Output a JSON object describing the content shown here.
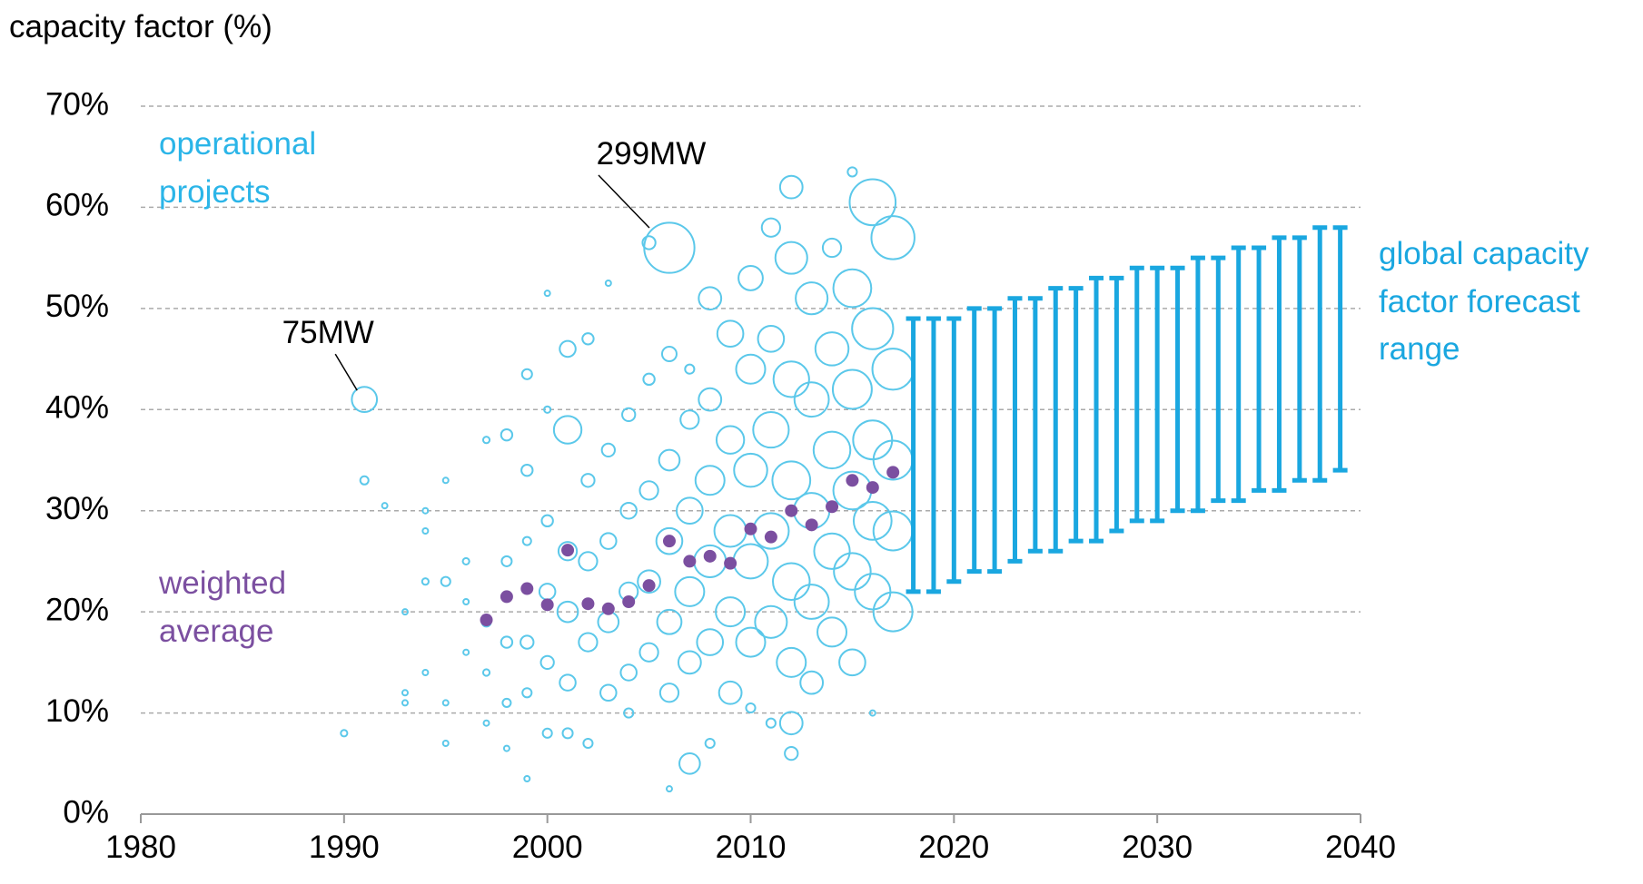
{
  "chart_data": {
    "type": "bubble",
    "y_label": "capacity factor (%)",
    "xlim": [
      1980,
      2040
    ],
    "xticks": [
      1980,
      1990,
      2000,
      2010,
      2020,
      2030,
      2040
    ],
    "ylim": [
      0,
      70
    ],
    "yticks": [
      {
        "value": 0,
        "label": "0%"
      },
      {
        "value": 10,
        "label": "10%"
      },
      {
        "value": 20,
        "label": "20%"
      },
      {
        "value": 30,
        "label": "30%"
      },
      {
        "value": 40,
        "label": "40%"
      },
      {
        "value": 50,
        "label": "50%"
      },
      {
        "value": 60,
        "label": "60%"
      },
      {
        "value": 70,
        "label": "70%"
      }
    ],
    "grid": true,
    "series": [
      {
        "name": "operational projects",
        "color": "#5bc8ea",
        "x": [
          1990,
          1991,
          1991,
          1992,
          1993,
          1993,
          1993,
          1994,
          1994,
          1994,
          1994,
          1995,
          1995,
          1995,
          1995,
          1996,
          1996,
          1996,
          1997,
          1997,
          1997,
          1997,
          1998,
          1998,
          1998,
          1998,
          1998,
          1999,
          1999,
          1999,
          1999,
          1999,
          1999,
          2000,
          2000,
          2000,
          2000,
          2000,
          2000,
          2001,
          2001,
          2001,
          2001,
          2001,
          2001,
          2002,
          2002,
          2002,
          2002,
          2002,
          2003,
          2003,
          2003,
          2003,
          2003,
          2004,
          2004,
          2004,
          2004,
          2004,
          2005,
          2005,
          2005,
          2005,
          2005,
          2006,
          2006,
          2006,
          2006,
          2006,
          2006,
          2006,
          2007,
          2007,
          2007,
          2007,
          2007,
          2007,
          2008,
          2008,
          2008,
          2008,
          2008,
          2008,
          2009,
          2009,
          2009,
          2009,
          2009,
          2010,
          2010,
          2010,
          2010,
          2010,
          2010,
          2011,
          2011,
          2011,
          2011,
          2011,
          2011,
          2012,
          2012,
          2012,
          2012,
          2012,
          2012,
          2012,
          2012,
          2013,
          2013,
          2013,
          2013,
          2013,
          2014,
          2014,
          2014,
          2014,
          2014,
          2015,
          2015,
          2015,
          2015,
          2015,
          2015,
          2016,
          2016,
          2016,
          2016,
          2016,
          2016,
          2017,
          2017,
          2017,
          2017,
          2017
        ],
        "values": [
          8,
          41,
          33,
          30.5,
          12,
          11,
          20,
          30,
          28,
          23,
          14,
          33,
          23,
          7,
          11,
          25,
          16,
          21,
          37,
          19,
          14,
          9,
          37.5,
          25,
          17,
          11,
          6.5,
          43.5,
          34,
          27,
          17,
          12,
          3.5,
          51.5,
          40,
          29,
          22,
          15,
          8,
          46,
          38,
          26,
          20,
          13,
          8,
          47,
          33,
          25,
          17,
          7,
          52.5,
          36,
          27,
          19,
          12,
          39.5,
          30,
          22,
          14,
          10,
          56.5,
          43,
          32,
          23,
          16,
          56,
          45.5,
          35,
          27,
          19,
          12,
          2.5,
          44,
          39,
          30,
          22,
          15,
          5,
          51,
          41,
          33,
          25,
          17,
          7,
          47.5,
          37,
          28,
          20,
          12,
          53,
          44,
          34,
          25,
          17,
          10.5,
          58,
          47,
          38,
          28,
          19,
          9,
          62,
          55,
          43,
          33,
          23,
          15,
          9,
          6,
          51,
          41,
          30,
          21,
          13,
          56,
          46,
          36,
          26,
          18,
          63.5,
          52,
          42,
          32,
          24,
          15,
          60.5,
          48,
          37,
          29,
          22,
          10,
          57,
          44,
          35,
          28,
          20
        ],
        "sizes": [
          5,
          75,
          8,
          1,
          1,
          1,
          1,
          3,
          3,
          5,
          2,
          3,
          10,
          1,
          2,
          5,
          3,
          3,
          5,
          10,
          5,
          3,
          15,
          12,
          15,
          8,
          3,
          12,
          15,
          8,
          20,
          10,
          2,
          1,
          5,
          15,
          30,
          20,
          10,
          30,
          90,
          40,
          50,
          30,
          12,
          15,
          20,
          40,
          40,
          10,
          1,
          20,
          30,
          50,
          30,
          20,
          30,
          40,
          30,
          10,
          20,
          15,
          40,
          60,
          40,
          299,
          25,
          50,
          80,
          70,
          40,
          3,
          10,
          40,
          80,
          100,
          60,
          50,
          60,
          60,
          100,
          120,
          80,
          10,
          80,
          90,
          120,
          100,
          60,
          70,
          100,
          130,
          140,
          100,
          10,
          40,
          80,
          150,
          150,
          120,
          10,
          60,
          120,
          150,
          170,
          160,
          100,
          60,
          20,
          120,
          140,
          150,
          140,
          60,
          40,
          130,
          160,
          150,
          100,
          10,
          170,
          180,
          170,
          160,
          80,
          250,
          200,
          180,
          170,
          150,
          2,
          220,
          200,
          180,
          180,
          180
        ]
      },
      {
        "name": "weighted average",
        "color": "#7b4fa0",
        "x": [
          1997,
          1998,
          1999,
          2000,
          2001,
          2002,
          2003,
          2004,
          2005,
          2006,
          2007,
          2008,
          2009,
          2010,
          2011,
          2012,
          2013,
          2014,
          2015,
          2016,
          2017
        ],
        "values": [
          19.2,
          21.5,
          22.3,
          20.7,
          26.1,
          20.8,
          20.3,
          21,
          22.6,
          27,
          25,
          25.5,
          24.8,
          28.2,
          27.4,
          30,
          28.6,
          30.4,
          33,
          32.3,
          33.8
        ]
      },
      {
        "name": "global capacity factor forecast range",
        "color": "#1aa7e0",
        "x": [
          2018,
          2019,
          2020,
          2021,
          2022,
          2023,
          2024,
          2025,
          2026,
          2027,
          2028,
          2029,
          2030,
          2031,
          2032,
          2033,
          2034,
          2035,
          2036,
          2037,
          2038,
          2039
        ],
        "low": [
          22,
          22,
          23,
          24,
          24,
          25,
          26,
          26,
          27,
          27,
          28,
          29,
          29,
          30,
          30,
          31,
          31,
          32,
          32,
          33,
          33,
          34
        ],
        "high": [
          49,
          49,
          49,
          50,
          50,
          51,
          51,
          52,
          52,
          53,
          53,
          54,
          54,
          54,
          55,
          55,
          56,
          56,
          57,
          57,
          58,
          58
        ]
      }
    ],
    "annotations": [
      {
        "text": "75MW",
        "x": 1991,
        "y": 41
      },
      {
        "text": "299MW",
        "x": 2006,
        "y": 56
      }
    ]
  }
}
